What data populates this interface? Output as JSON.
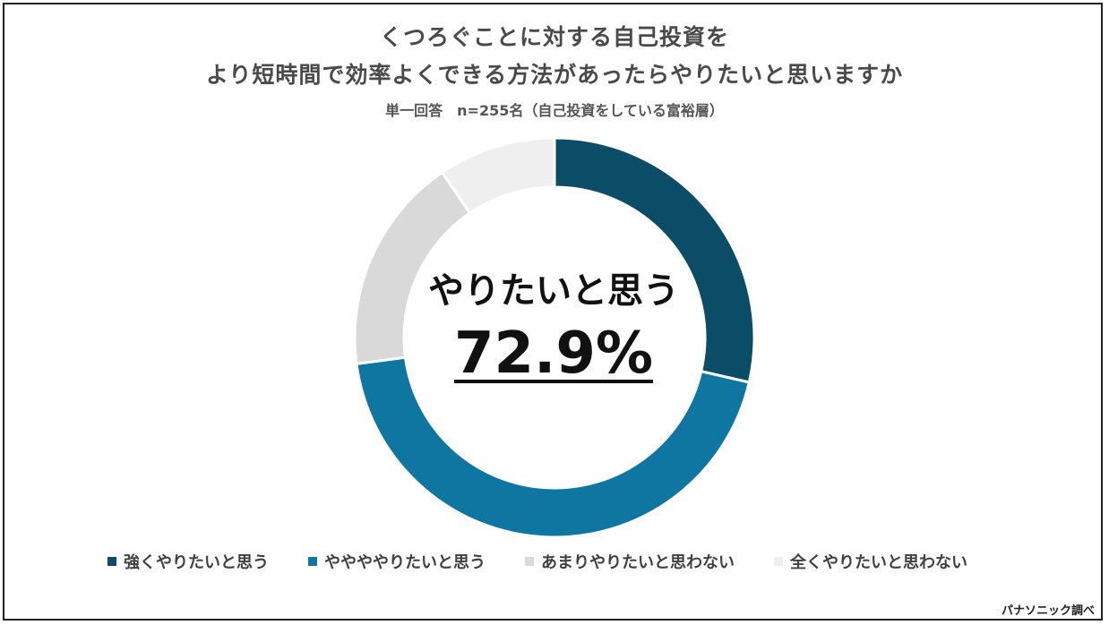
{
  "chart_data": {
    "type": "donut",
    "title_line1": "くつろぐことに対する自己投資を",
    "title_line2": "より短時間で効率よくできる方法があったらやりたいと思いますか",
    "subtitle": "単一回答　n=255名（自己投資をしている富裕層）",
    "center_label": "やりたいと思う",
    "center_value": "72.9%",
    "series": [
      {
        "name": "強くやりたいと思う",
        "value": 28.6,
        "color": "#0b4d66"
      },
      {
        "name": "ややややりたいと思う",
        "value": 44.3,
        "color": "#0e76a0"
      },
      {
        "name": "あまりやりたいと思わない",
        "value": 17.6,
        "color": "#d9d9d9"
      },
      {
        "name": "全くやりたいと思わない",
        "value": 9.5,
        "color": "#efefef"
      }
    ],
    "source": "パナソニック調べ"
  }
}
